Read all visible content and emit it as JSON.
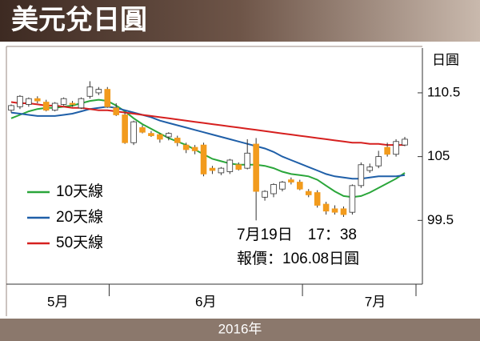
{
  "chart_data": {
    "type": "candlestick",
    "title": "美元兌日圓",
    "y_unit": "日圓",
    "year_label": "2016年",
    "months": [
      "5月",
      "6月",
      "7月"
    ],
    "categories": [
      null,
      null,
      null,
      null,
      null,
      null,
      null,
      null,
      null,
      null,
      null,
      null,
      null,
      null,
      null,
      null,
      null,
      null,
      null,
      null,
      null,
      null,
      null,
      null,
      null,
      null,
      null,
      null,
      null,
      null,
      null,
      null,
      null,
      null,
      null,
      null,
      null,
      null,
      null,
      null,
      null,
      null,
      null,
      null,
      null,
      null
    ],
    "open": [
      109.0,
      109.3,
      109.5,
      110.0,
      109.7,
      109.0,
      109.5,
      109.6,
      109.2,
      110.2,
      110.5,
      110.8,
      109.2,
      108.6,
      106.2,
      107.5,
      107.0,
      106.9,
      106.7,
      106.6,
      106.0,
      105.8,
      106.0,
      104.0,
      103.6,
      103.7,
      104.3,
      104.0,
      106.08,
      101.5,
      101.8,
      102.2,
      103.0,
      102.8,
      102.0,
      101.9,
      100.9,
      100.5,
      100.5,
      100.2,
      102.5,
      103.8,
      104.2,
      105.8,
      105.2,
      106.0
    ],
    "high": [
      109.5,
      110.3,
      110.1,
      110.2,
      109.9,
      109.7,
      110.1,
      109.8,
      110.1,
      111.5,
      111.0,
      111.0,
      109.6,
      108.8,
      108.1,
      107.7,
      107.2,
      107.0,
      107.1,
      106.8,
      106.2,
      106.0,
      106.2,
      104.2,
      104.1,
      104.8,
      104.5,
      106.5,
      106.6,
      102.1,
      102.7,
      102.9,
      103.2,
      103.0,
      102.2,
      102.1,
      101.1,
      100.8,
      100.7,
      102.6,
      104.5,
      104.4,
      105.5,
      106.2,
      106.5,
      106.7
    ],
    "low": [
      108.8,
      109.1,
      109.3,
      109.6,
      108.9,
      108.9,
      109.4,
      109.3,
      109.1,
      110.0,
      110.3,
      109.2,
      108.5,
      106.1,
      106.0,
      107.0,
      106.7,
      106.2,
      106.4,
      105.9,
      105.3,
      105.2,
      103.3,
      103.5,
      103.4,
      103.5,
      103.8,
      103.9,
      99.5,
      101.2,
      101.5,
      102.0,
      102.6,
      102.1,
      101.5,
      100.6,
      100.0,
      100.0,
      99.8,
      100.0,
      102.3,
      103.6,
      104.0,
      105.0,
      105.0,
      105.9
    ],
    "close": [
      109.4,
      110.2,
      110.0,
      109.8,
      109.0,
      109.6,
      110.0,
      109.5,
      110.0,
      111.0,
      110.8,
      109.3,
      108.6,
      106.2,
      108.0,
      107.1,
      106.8,
      106.5,
      107.0,
      106.2,
      105.6,
      105.5,
      103.5,
      103.8,
      104.0,
      104.7,
      103.9,
      105.3,
      102.0,
      102.0,
      102.6,
      102.8,
      102.8,
      102.2,
      101.7,
      100.8,
      100.3,
      100.2,
      100.0,
      102.5,
      104.3,
      104.1,
      105.0,
      105.2,
      106.3,
      106.5
    ],
    "up_color": "#ffffff",
    "down_color": "#f29b1d",
    "moving_averages": [
      {
        "name": "10天線",
        "color": "#2aa63a",
        "values": [
          108.3,
          108.6,
          108.9,
          109.1,
          109.2,
          109.2,
          109.3,
          109.4,
          109.6,
          109.8,
          109.9,
          109.8,
          109.4,
          108.9,
          108.3,
          107.8,
          107.4,
          107.0,
          106.6,
          106.3,
          106.0,
          105.6,
          105.2,
          104.8,
          104.6,
          104.4,
          104.3,
          104.3,
          104.3,
          104.2,
          104.0,
          103.7,
          103.5,
          103.4,
          103.3,
          103.0,
          102.5,
          102.0,
          101.6,
          101.5,
          101.6,
          101.9,
          102.3,
          102.7,
          103.1,
          103.6
        ]
      },
      {
        "name": "20天線",
        "color": "#1f5fa8",
        "values": [
          108.8,
          108.7,
          108.6,
          108.5,
          108.5,
          108.5,
          108.6,
          108.7,
          108.9,
          109.1,
          109.2,
          109.3,
          109.2,
          109.0,
          108.8,
          108.6,
          108.4,
          108.1,
          107.9,
          107.7,
          107.5,
          107.3,
          107.1,
          106.9,
          106.7,
          106.5,
          106.3,
          106.1,
          105.9,
          105.7,
          105.4,
          105.0,
          104.7,
          104.4,
          104.1,
          103.8,
          103.5,
          103.3,
          103.2,
          103.1,
          103.1,
          103.2,
          103.3,
          103.3,
          103.3,
          103.4
        ]
      },
      {
        "name": "50天線",
        "color": "#d6201f",
        "values": [
          109.7,
          109.6,
          109.6,
          109.5,
          109.4,
          109.4,
          109.3,
          109.2,
          109.2,
          109.1,
          109.0,
          109.0,
          108.9,
          108.8,
          108.7,
          108.6,
          108.5,
          108.4,
          108.3,
          108.2,
          108.1,
          108.0,
          107.9,
          107.8,
          107.7,
          107.6,
          107.5,
          107.4,
          107.3,
          107.2,
          107.1,
          107.0,
          106.9,
          106.8,
          106.7,
          106.6,
          106.5,
          106.4,
          106.3,
          106.2,
          106.2,
          106.1,
          106.1,
          106.0,
          106.0,
          106.0
        ]
      }
    ],
    "annotation": [
      "7月19日　17：38",
      "報價：106.08日圓"
    ],
    "ylim": [
      94,
      114.5
    ],
    "yticks": [
      99.5,
      105,
      110.5
    ],
    "y_axis_side": "right"
  }
}
